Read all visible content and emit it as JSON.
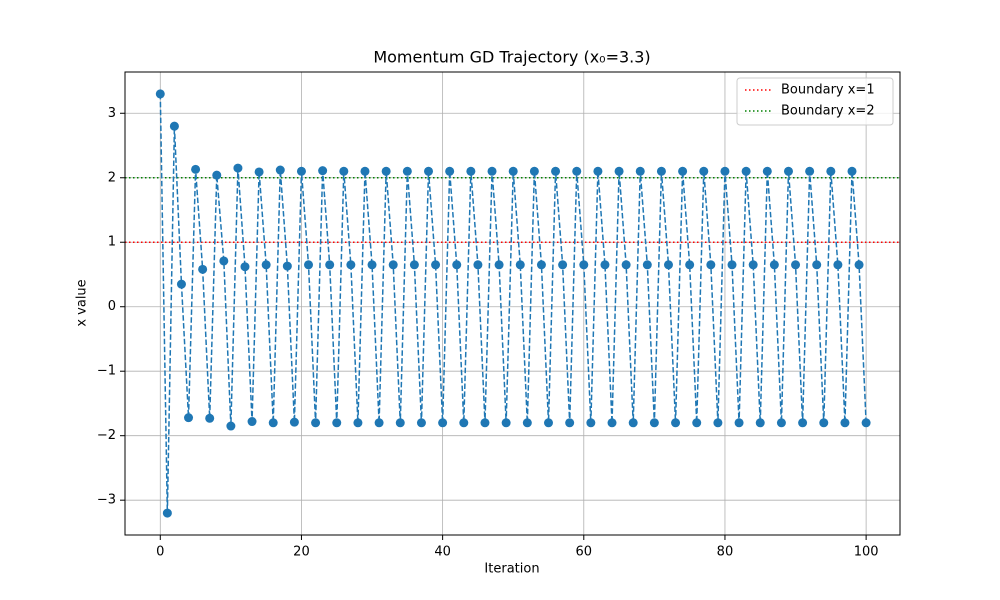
{
  "chart_data": {
    "type": "line",
    "title": "Momentum GD Trajectory (x₀=3.3)",
    "x_label": "Iteration",
    "y_label": "x value",
    "x": [
      0,
      1,
      2,
      3,
      4,
      5,
      6,
      7,
      8,
      9,
      10,
      11,
      12,
      13,
      14,
      15,
      16,
      17,
      18,
      19,
      20,
      21,
      22,
      23,
      24,
      25,
      26,
      27,
      28,
      29,
      30,
      31,
      32,
      33,
      34,
      35,
      36,
      37,
      38,
      39,
      40,
      41,
      42,
      43,
      44,
      45,
      46,
      47,
      48,
      49,
      50,
      51,
      52,
      53,
      54,
      55,
      56,
      57,
      58,
      59,
      60,
      61,
      62,
      63,
      64,
      65,
      66,
      67,
      68,
      69,
      70,
      71,
      72,
      73,
      74,
      75,
      76,
      77,
      78,
      79,
      80,
      81,
      82,
      83,
      84,
      85,
      86,
      87,
      88,
      89,
      90,
      91,
      92,
      93,
      94,
      95,
      96,
      97,
      98,
      99,
      100
    ],
    "series": [
      {
        "color": "#1f77b4",
        "values": [
          3.3,
          -3.2,
          2.8,
          0.35,
          -1.72,
          2.13,
          0.58,
          -1.73,
          2.04,
          0.71,
          -1.85,
          2.15,
          0.62,
          -1.78,
          2.09,
          0.65,
          -1.8,
          2.12,
          0.63,
          -1.79,
          2.1,
          0.65,
          -1.8,
          2.11,
          0.65,
          -1.8,
          2.1,
          0.65,
          -1.8,
          2.1,
          0.65,
          -1.8,
          2.1,
          0.65,
          -1.8,
          2.1,
          0.65,
          -1.8,
          2.1,
          0.65,
          -1.8,
          2.1,
          0.65,
          -1.8,
          2.1,
          0.65,
          -1.8,
          2.1,
          0.65,
          -1.8,
          2.1,
          0.65,
          -1.8,
          2.1,
          0.65,
          -1.8,
          2.1,
          0.65,
          -1.8,
          2.1,
          0.65,
          -1.8,
          2.1,
          0.65,
          -1.8,
          2.1,
          0.65,
          -1.8,
          2.1,
          0.65,
          -1.8,
          2.1,
          0.65,
          -1.8,
          2.1,
          0.65,
          -1.8,
          2.1,
          0.65,
          -1.8,
          2.1,
          0.65,
          -1.8,
          2.1,
          0.65,
          -1.8,
          2.1,
          0.65,
          -1.8,
          2.1,
          0.65,
          -1.8,
          2.1,
          0.65,
          -1.8,
          2.1,
          0.65,
          -1.8,
          2.1,
          0.65,
          -1.8
        ]
      }
    ],
    "hlines": [
      {
        "name": "Boundary x=1",
        "value": 1,
        "color": "red"
      },
      {
        "name": "Boundary x=2",
        "value": 2,
        "color": "green"
      }
    ],
    "xlim": [
      -5,
      104.8
    ],
    "ylim": [
      -3.54,
      3.64
    ],
    "xticks": [
      0,
      20,
      40,
      60,
      80,
      100
    ],
    "yticks": [
      {
        "value": -3,
        "label": "−3"
      },
      {
        "value": -2,
        "label": "−2"
      },
      {
        "value": -1,
        "label": "−1"
      },
      0,
      1,
      2,
      3
    ],
    "grid": true,
    "legend": "upper right"
  }
}
